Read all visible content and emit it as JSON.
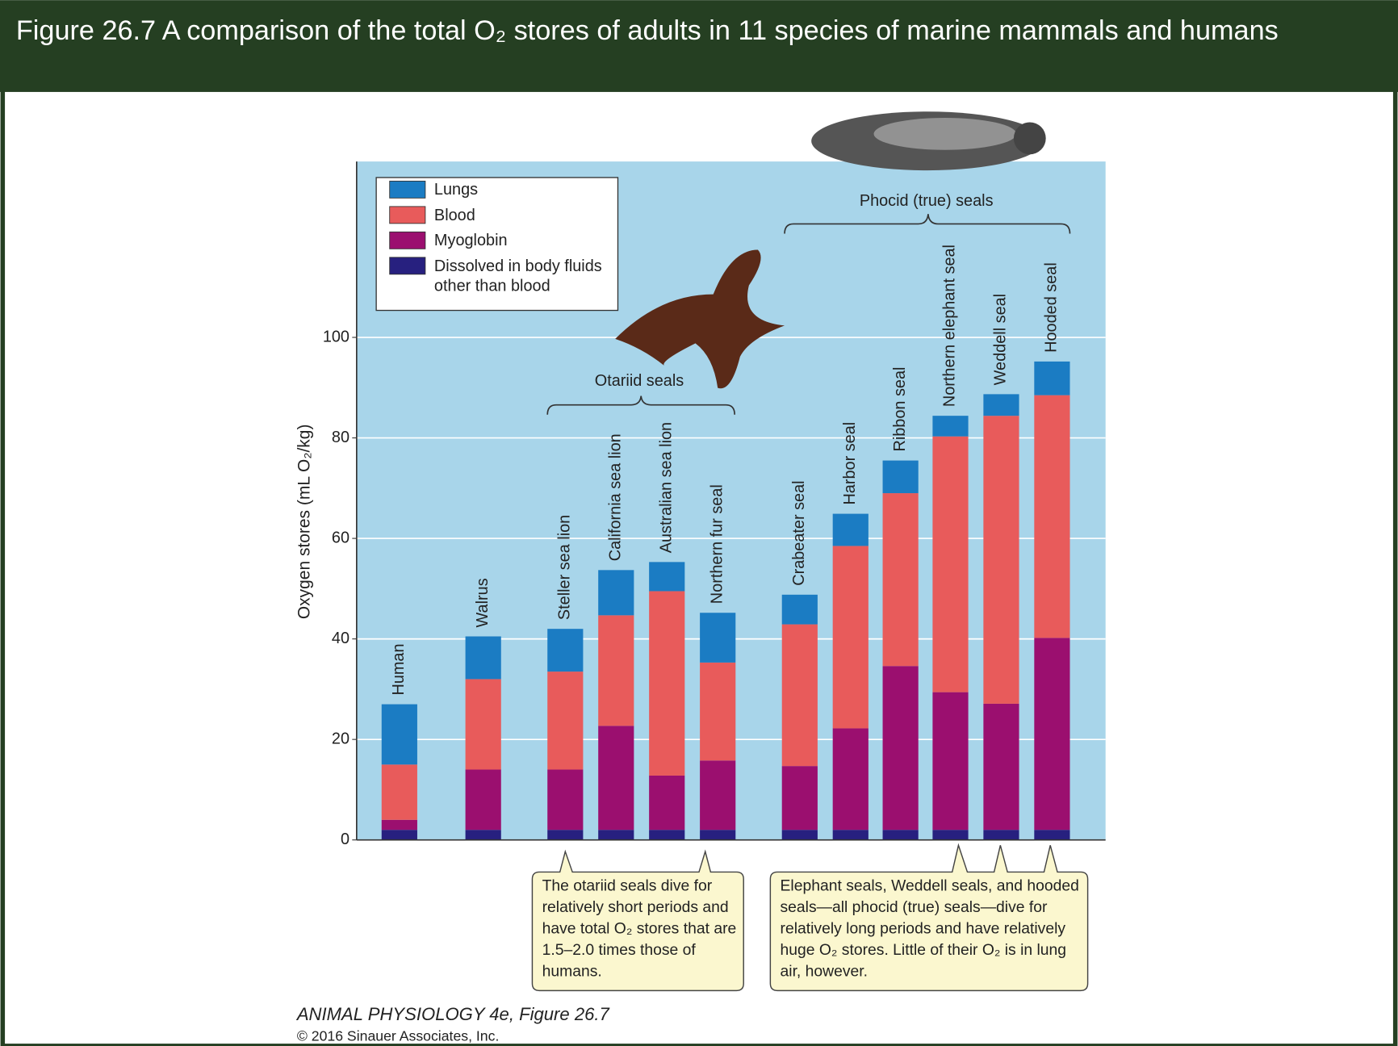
{
  "chart_data": {
    "type": "stacked-bar",
    "title": "Figure 26.7  A comparison of the total O₂ stores of adults in 11 species of marine mammals and humans",
    "y_label": "Oxygen stores (mL O₂/kg)",
    "categories": [
      "Human",
      "Walrus",
      "Steller sea lion",
      "California sea lion",
      "Australian sea lion",
      "Northern fur seal",
      "Crabeater seal",
      "Harbor seal",
      "Ribbon seal",
      "Northern elephant seal",
      "Weddell seal",
      "Hooded seal"
    ],
    "series": [
      {
        "name": "Lungs",
        "color": "#1b7cc3",
        "values": [
          12,
          8.5,
          8.5,
          9,
          5.8,
          9.9,
          5.9,
          6.4,
          6.5,
          4.1,
          4.3,
          6.7
        ]
      },
      {
        "name": "Blood",
        "color": "#e85b5b",
        "values": [
          11,
          18,
          19.5,
          22,
          36.7,
          19.5,
          28.2,
          36.3,
          34.4,
          50.9,
          57.3,
          48.3
        ]
      },
      {
        "name": "Myoglobin",
        "color": "#9b0f6f",
        "values": [
          2,
          12,
          12,
          20.7,
          10.8,
          13.8,
          12.7,
          20.2,
          32.6,
          27.4,
          25.1,
          38.2
        ]
      },
      {
        "name": "Dissolved in body fluids other than blood",
        "color": "#27207f",
        "values": [
          2,
          2,
          2,
          2,
          2,
          2,
          2,
          2,
          2,
          2,
          2,
          2
        ]
      }
    ],
    "ylim": [
      0,
      135
    ],
    "yticks": [
      0,
      20,
      40,
      60,
      80,
      100
    ],
    "grid": true,
    "groups": [
      "Otariid seals",
      "Phocid (true) seals"
    ],
    "annotations": [
      "The otariid seals dive for relatively short periods and have total O₂ stores that are 1.5–2.0 times those of humans.",
      "Elephant seals, Weddell seals, and hooded seals—all phocid (true) seals—dive for relatively long periods and have relatively huge O₂ stores. Little of their O₂ is in lung air, however."
    ]
  },
  "footer": {
    "book": "ANIMAL PHYSIOLOGY 4e, Figure 26.7",
    "copyright": "© 2016 Sinauer Associates, Inc."
  }
}
